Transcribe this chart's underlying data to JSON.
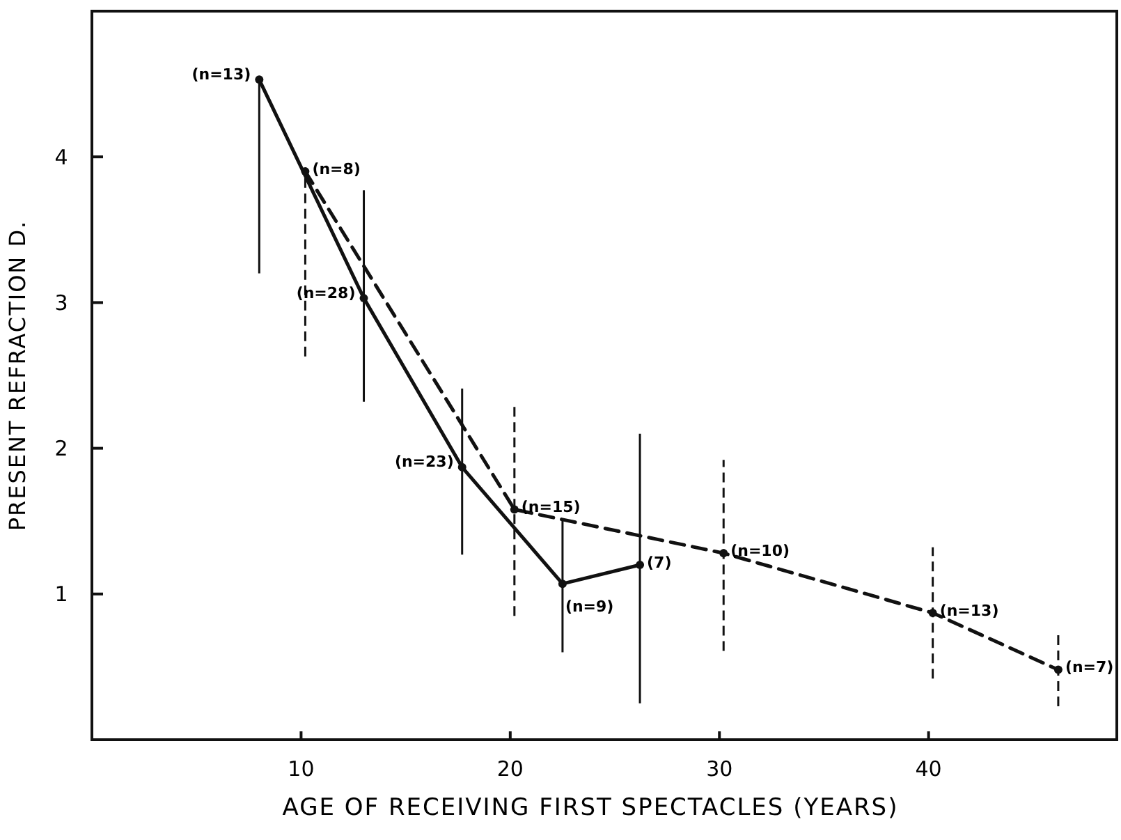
{
  "chart_data": {
    "type": "line",
    "xlabel": "AGE OF RECEIVING FIRST SPECTACLES (YEARS)",
    "ylabel": "PRESENT REFRACTION D.",
    "xlim": [
      0,
      49
    ],
    "ylim": [
      0,
      5
    ],
    "xticks": [
      10,
      20,
      30,
      40
    ],
    "yticks": [
      1,
      2,
      3,
      4
    ],
    "grid": false,
    "marker": "circle",
    "series": [
      {
        "color": "#111111",
        "line_style": "solid",
        "x": [
          8,
          13,
          17.7,
          22.5,
          26.2
        ],
        "values": [
          4.53,
          3.03,
          1.87,
          1.07,
          1.2
        ],
        "errors": [
          [
            3.2,
            4.53
          ],
          [
            2.32,
            3.77
          ],
          [
            1.27,
            2.41
          ],
          [
            0.6,
            1.51
          ],
          [
            0.25,
            2.1
          ]
        ]
      },
      {
        "color": "#111111",
        "line_style": "dashed",
        "x": [
          10.2,
          20.2,
          30.2,
          40.2,
          46.2
        ],
        "values": [
          3.9,
          1.58,
          1.28,
          0.87,
          0.48
        ],
        "errors": [
          [
            2.63,
            3.9
          ],
          [
            0.85,
            2.3
          ],
          [
            0.61,
            1.92
          ],
          [
            0.42,
            1.32
          ],
          [
            0.23,
            0.72
          ]
        ]
      }
    ],
    "annotations": [
      {
        "text": "(n=13)",
        "x": 8,
        "y": 4.53
      },
      {
        "text": "(n=8)",
        "x": 10.2,
        "y": 3.9
      },
      {
        "text": "(n=28)",
        "x": 13,
        "y": 3.03
      },
      {
        "text": "(n=23)",
        "x": 17.7,
        "y": 1.87
      },
      {
        "text": "(n=15)",
        "x": 20.2,
        "y": 1.58
      },
      {
        "text": "(n=9)",
        "x": 22.5,
        "y": 1.07
      },
      {
        "text": "(7)",
        "x": 26.2,
        "y": 1.2
      },
      {
        "text": "(n=10)",
        "x": 30.2,
        "y": 1.28
      },
      {
        "text": "(n=13)",
        "x": 40.2,
        "y": 0.87
      },
      {
        "text": "(n=7)",
        "x": 46.2,
        "y": 0.48
      }
    ]
  }
}
